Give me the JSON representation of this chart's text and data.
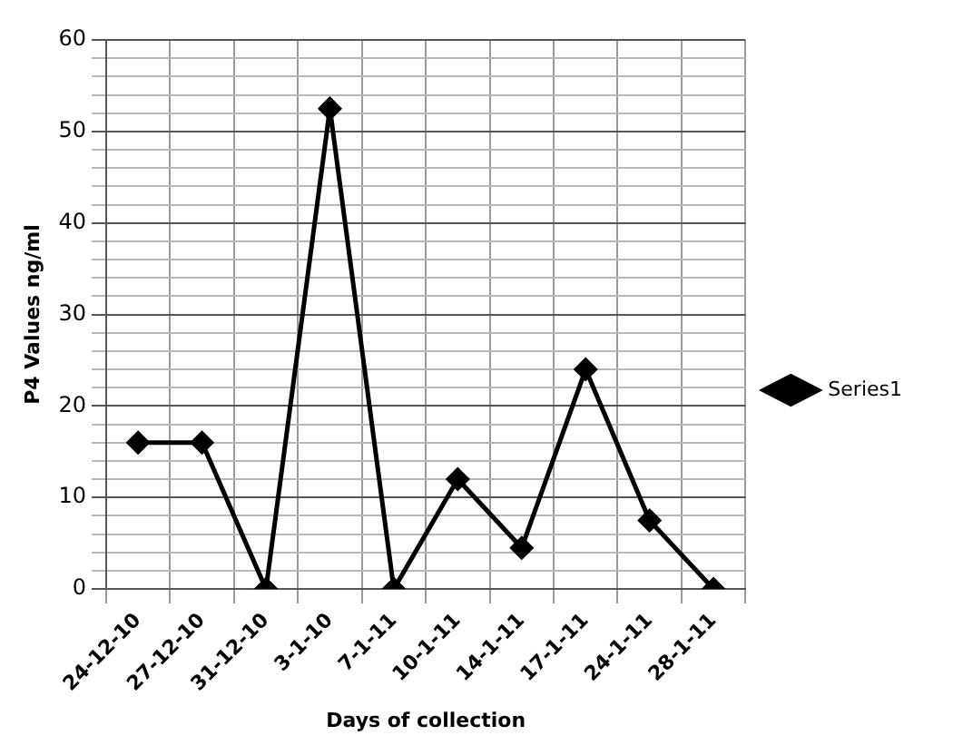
{
  "chart_data": {
    "type": "line",
    "xlabel": "Days of collection",
    "ylabel": "P4 Values ng/ml",
    "categories": [
      "24-12-10",
      "27-12-10",
      "31-12-10",
      "3-1-10",
      "7-1-11",
      "10-1-11",
      "14-1-11",
      "17-1-11",
      "24-1-11",
      "28-1-11"
    ],
    "series": [
      {
        "name": "Series1",
        "color": "#000000",
        "values": [
          16,
          16,
          0,
          52.5,
          0,
          12,
          4.5,
          24,
          7.5,
          0
        ]
      }
    ],
    "ylim": [
      0,
      60
    ],
    "yticks": [
      0,
      {
        "value": 2,
        "label": null
      },
      {
        "value": 4,
        "label": null
      },
      {
        "value": 6,
        "label": null
      },
      {
        "value": 8,
        "label": null
      },
      10,
      {
        "value": 12,
        "label": null
      },
      {
        "value": 14,
        "label": null
      },
      {
        "value": 16,
        "label": null
      },
      {
        "value": 18,
        "label": null
      },
      20,
      {
        "value": 22,
        "label": null
      },
      {
        "value": 24,
        "label": null
      },
      {
        "value": 26,
        "label": null
      },
      {
        "value": 28,
        "label": null
      },
      30,
      {
        "value": 32,
        "label": null
      },
      {
        "value": 34,
        "label": null
      },
      {
        "value": 36,
        "label": null
      },
      {
        "value": 38,
        "label": null
      },
      40,
      {
        "value": 42,
        "label": null
      },
      {
        "value": 44,
        "label": null
      },
      {
        "value": 46,
        "label": null
      },
      {
        "value": 48,
        "label": null
      },
      50,
      {
        "value": 52,
        "label": null
      },
      {
        "value": 54,
        "label": null
      },
      {
        "value": 56,
        "label": null
      },
      {
        "value": 58,
        "label": null
      },
      60
    ],
    "grid": true,
    "legend": "right",
    "marker": "diamond",
    "line_style": "solid"
  }
}
